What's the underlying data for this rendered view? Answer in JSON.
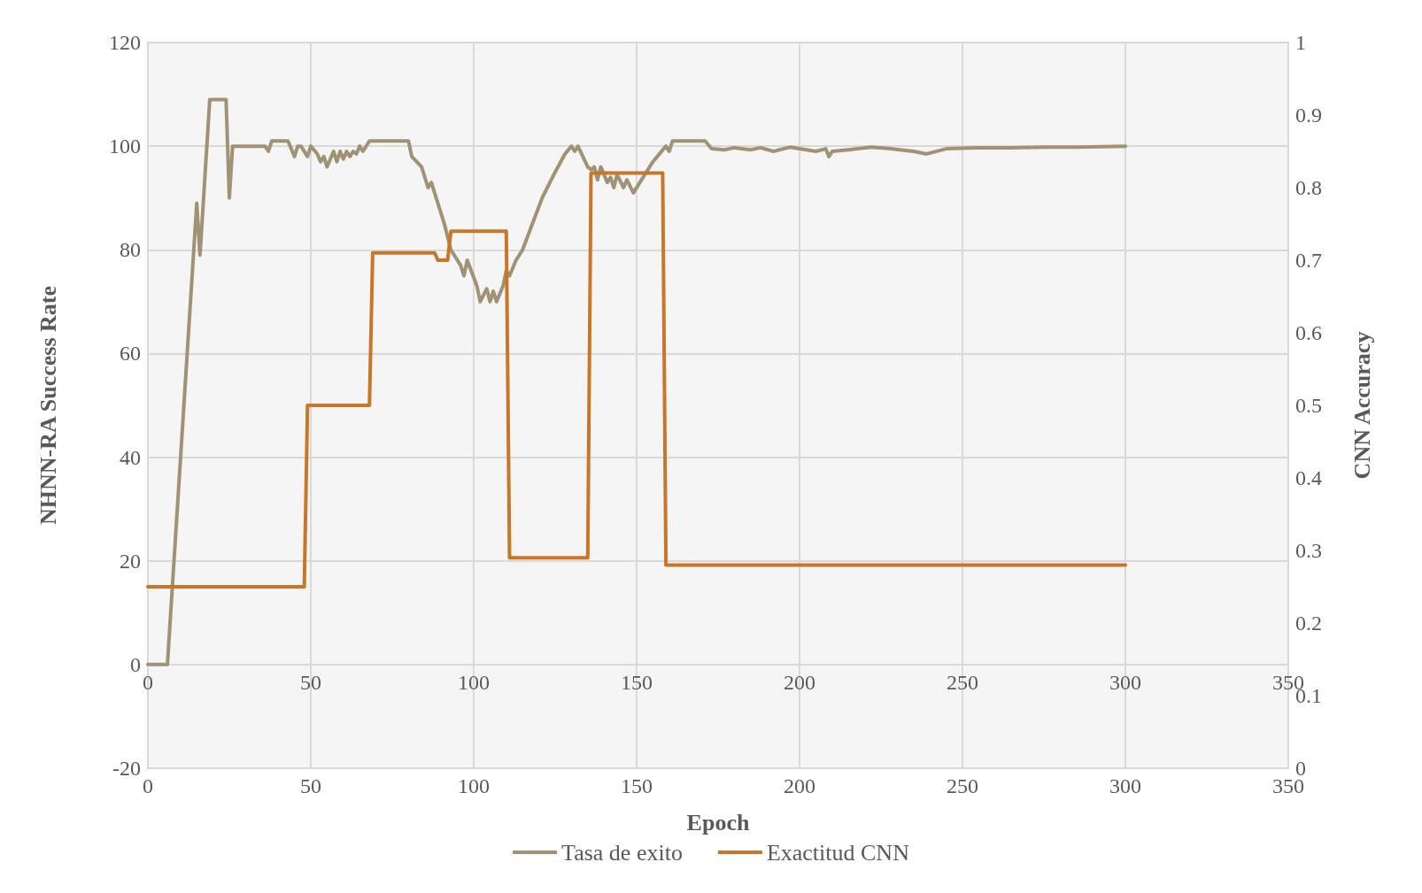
{
  "chart_data": {
    "type": "line",
    "xlabel": "Epoch",
    "ylabel": "NHNN-RA Success Rate",
    "y2label": "CNN Accuracy",
    "xlim": [
      0,
      350
    ],
    "xticks": [
      0,
      50,
      100,
      150,
      200,
      250,
      300,
      350
    ],
    "x2lim": [
      0,
      350
    ],
    "x2ticks": [
      0,
      50,
      100,
      150,
      200,
      250,
      300,
      350
    ],
    "ylim": [
      -20,
      120
    ],
    "yticks": [
      -20,
      0,
      20,
      40,
      60,
      80,
      100,
      120
    ],
    "y2lim": [
      0,
      1
    ],
    "y2ticks": [
      0,
      0.1,
      0.2,
      0.3,
      0.4,
      0.5,
      0.6,
      0.7,
      0.8,
      0.9,
      1
    ],
    "grid": true,
    "legend": "bottom",
    "marker": "none",
    "line_style": "solid",
    "series": [
      {
        "name": "Tasa de exito",
        "color": "#a09274",
        "x": [
          0,
          6,
          15,
          16,
          19,
          24,
          25,
          26,
          36,
          37,
          38,
          43,
          45,
          46,
          47,
          49,
          50,
          52,
          53,
          54,
          55,
          57,
          58,
          59,
          60,
          61,
          62,
          63,
          64,
          65,
          66,
          68,
          80,
          81,
          84,
          86,
          87,
          89,
          91,
          93,
          96,
          97,
          98,
          101,
          102,
          104,
          105,
          106,
          107,
          109,
          110,
          111,
          113,
          115,
          118,
          121,
          125,
          128,
          130,
          131,
          132,
          135,
          136,
          137,
          138,
          139,
          141,
          142,
          143,
          144,
          146,
          147,
          149,
          151,
          155,
          159,
          160,
          161,
          171,
          173,
          177,
          180,
          185,
          188,
          192,
          197,
          205,
          208,
          209,
          210,
          215,
          222,
          228,
          235,
          239,
          245,
          255,
          265,
          275,
          285,
          300
        ],
        "values": [
          0,
          0,
          89,
          79,
          109,
          109,
          90,
          100,
          100,
          99,
          101,
          101,
          98,
          100,
          100,
          98,
          100,
          98.5,
          97,
          98,
          96,
          99,
          97,
          99,
          97.5,
          99,
          98,
          99,
          98.5,
          100,
          99,
          101,
          101,
          98,
          96,
          92,
          93,
          89,
          85,
          80,
          77,
          75,
          78,
          73,
          70,
          72.5,
          70,
          72,
          70,
          73,
          76,
          75,
          78,
          80,
          85,
          90,
          95,
          98.5,
          100,
          99,
          100,
          96,
          95.5,
          96,
          93.5,
          96,
          93,
          94,
          92,
          94.5,
          92,
          93.5,
          91,
          93,
          97,
          100,
          99,
          101,
          101,
          99.5,
          99.3,
          99.7,
          99.3,
          99.7,
          99,
          99.8,
          99,
          99.5,
          98,
          99,
          99.3,
          99.8,
          99.5,
          99,
          98.5,
          99.5,
          99.7,
          99.7,
          99.8,
          99.8,
          100
        ]
      },
      {
        "name": "Exactitud CNN",
        "color": "#c87628",
        "axis": "y2",
        "x": [
          0,
          48,
          49,
          68,
          69,
          88,
          89,
          92,
          93,
          110,
          111,
          135,
          136,
          158,
          159,
          300
        ],
        "values": [
          0.25,
          0.25,
          0.5,
          0.5,
          0.71,
          0.71,
          0.7,
          0.7,
          0.74,
          0.74,
          0.29,
          0.29,
          0.82,
          0.82,
          0.28,
          0.28
        ]
      }
    ]
  }
}
